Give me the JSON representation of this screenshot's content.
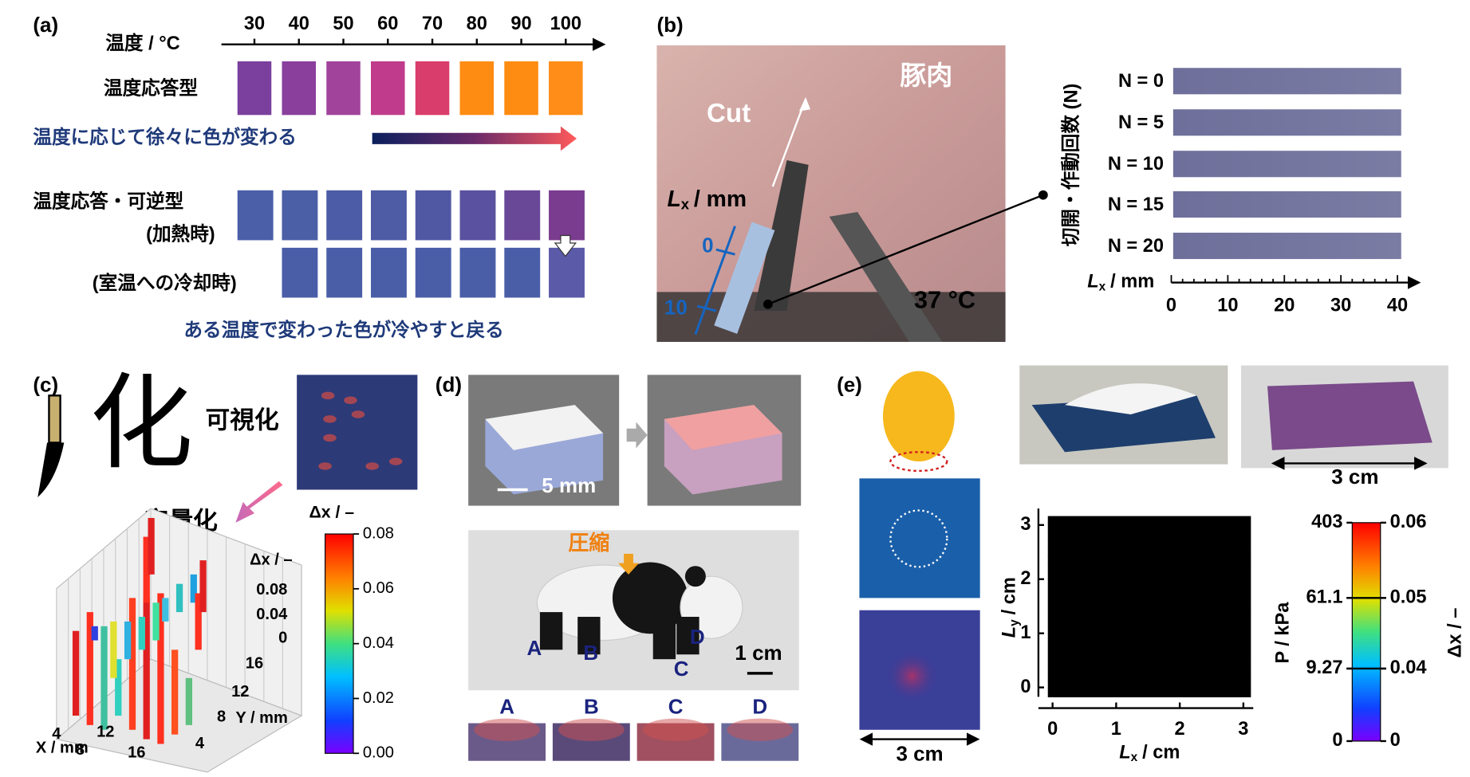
{
  "panel_a": {
    "label": "(a)",
    "axis_title": "温度 / °C",
    "ticks": [
      "30",
      "40",
      "50",
      "60",
      "70",
      "80",
      "90",
      "100"
    ],
    "row_1": "温度応答型",
    "caption_1": "温度に応じて徐々に色が変わる",
    "row_2": "温度応答・可逆型",
    "row_2_state": "(加熱時)",
    "row_3_state": "(室温への冷却時)",
    "caption_2": "ある温度で変わった色が冷やすと戻る"
  },
  "panel_b": {
    "label": "(b)",
    "photo": {
      "cut": "Cut",
      "tissue": "豚肉",
      "position_axis": {
        "symbol": "L",
        "subscript": "x",
        "unit": "/ mm"
      },
      "mark_0": "0",
      "mark_10": "10",
      "temperature": "37 °C"
    },
    "strips": {
      "y_title": "切開・作動回数 (N)",
      "rows": [
        "N = 0",
        "N = 5",
        "N = 10",
        "N = 15",
        "N = 20"
      ],
      "x_title": {
        "symbol": "L",
        "subscript": "x",
        "unit": "/ mm"
      },
      "x_ticks": [
        "0",
        "10",
        "20",
        "30",
        "40"
      ]
    }
  },
  "panel_c": {
    "label": "(c)",
    "glyph": "化",
    "visualize": "可視化",
    "quantify": "定量化",
    "colorbar_title": "Δx / –",
    "colorbar_ticks": [
      "0.08",
      "0.06",
      "0.04",
      "0.02",
      "0.00"
    ],
    "plot": {
      "z_title": "Δx / –",
      "z_ticks": [
        "0.08",
        "0.04",
        "0"
      ],
      "y_title": "Y / mm",
      "y_ticks": [
        "16",
        "12",
        "8",
        "4"
      ],
      "x_title": "X / mm",
      "x_ticks": [
        "4",
        "8",
        "12",
        "16"
      ]
    }
  },
  "panel_d": {
    "label": "(d)",
    "scale_sponge": "5 mm",
    "press": "圧縮",
    "points": [
      "A",
      "B",
      "C",
      "D"
    ],
    "scale_panda": "1 cm",
    "strip_labels": [
      "A",
      "B",
      "C",
      "D"
    ]
  },
  "panel_e": {
    "label": "(e)",
    "scale_sample": "3 cm",
    "scale_block": "3 cm",
    "map": {
      "y_title": {
        "symbol": "L",
        "subscript": "y",
        "unit": "/ cm"
      },
      "x_title": {
        "symbol": "L",
        "subscript": "x",
        "unit": "/ cm"
      },
      "x_ticks": [
        "0",
        "1",
        "2",
        "3"
      ],
      "y_ticks": [
        "0",
        "1",
        "2",
        "3"
      ],
      "pressure_title": "P / kPa",
      "pressure_ticks": [
        "403",
        "61.1",
        "9.27",
        "0"
      ],
      "strain_title": "Δx / –",
      "strain_ticks": [
        "0.06",
        "0.05",
        "0.04",
        "0"
      ]
    }
  }
}
